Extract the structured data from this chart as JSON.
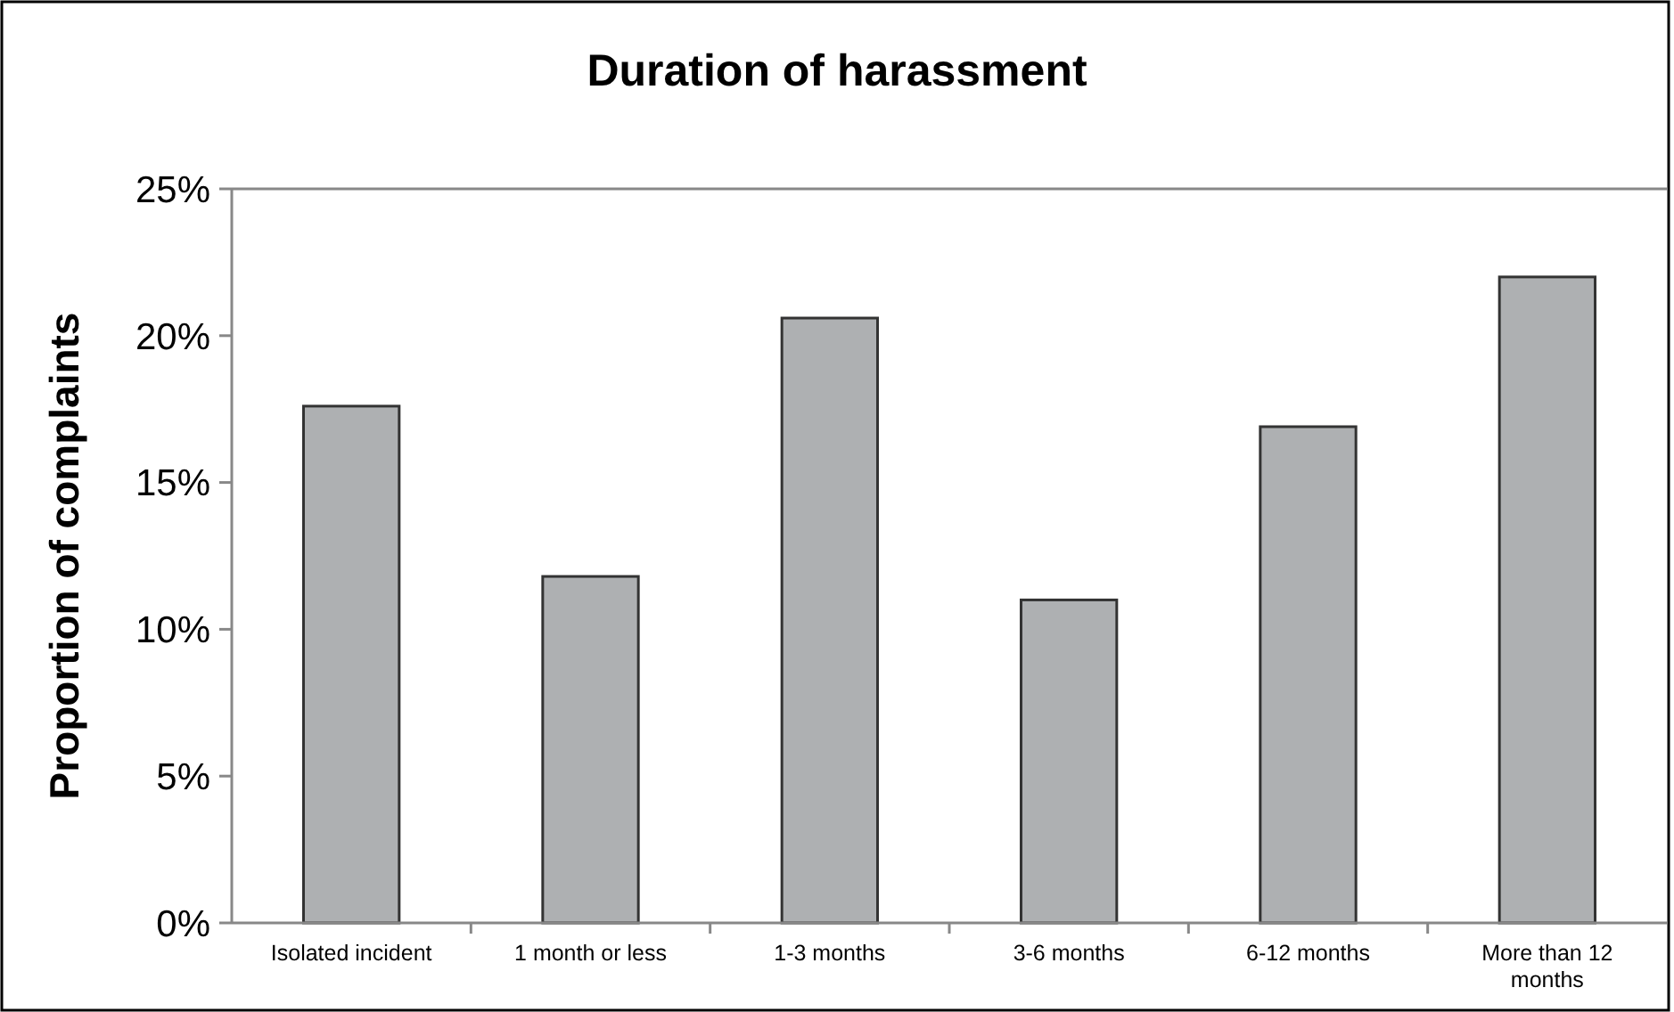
{
  "chart_data": {
    "type": "bar",
    "title": "Duration of harassment",
    "ylabel": "Proportion of complaints",
    "categories": [
      "Isolated incident",
      "1 month or less",
      "1-3 months",
      "3-6 months",
      "6-12 months",
      "More than 12 months"
    ],
    "values": [
      17.6,
      11.8,
      20.6,
      11.0,
      16.9,
      22.0
    ],
    "color": "#aeb0b2",
    "ylim": [
      0,
      25
    ],
    "yticks": [
      {
        "value": 0,
        "label": "0%"
      },
      {
        "value": 5,
        "label": "5%"
      },
      {
        "value": 10,
        "label": "10%"
      },
      {
        "value": 15,
        "label": "15%"
      },
      {
        "value": 20,
        "label": "20%"
      },
      {
        "value": 25,
        "label": "25%"
      }
    ],
    "grid": false
  }
}
